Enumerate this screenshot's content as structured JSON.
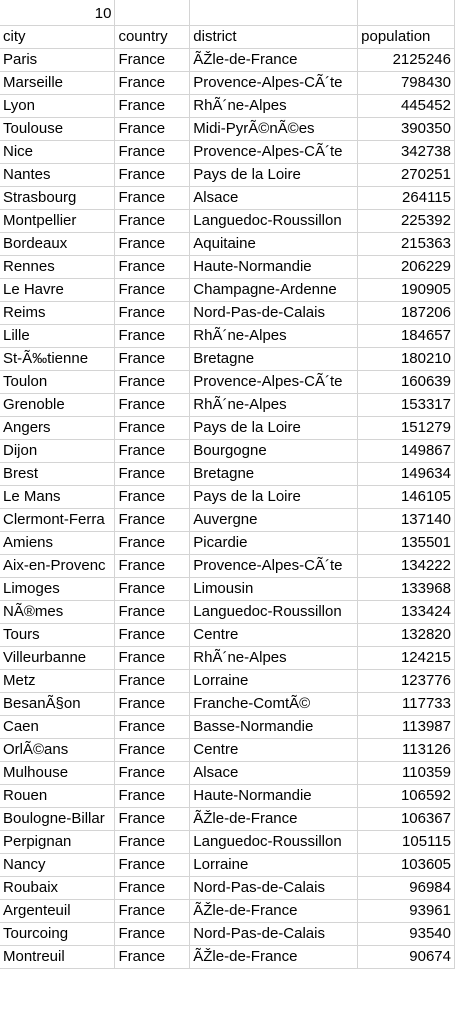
{
  "top_row": {
    "a1": "10",
    "b1": "",
    "c1": "",
    "d1": ""
  },
  "headers": [
    "city",
    "country",
    "district",
    "population"
  ],
  "rows": [
    [
      "Paris",
      "France",
      "ÃŽle-de-France",
      "2125246"
    ],
    [
      "Marseille",
      "France",
      "Provence-Alpes-CÃ´te",
      "798430"
    ],
    [
      "Lyon",
      "France",
      "RhÃ´ne-Alpes",
      "445452"
    ],
    [
      "Toulouse",
      "France",
      "Midi-PyrÃ©nÃ©es",
      "390350"
    ],
    [
      "Nice",
      "France",
      "Provence-Alpes-CÃ´te",
      "342738"
    ],
    [
      "Nantes",
      "France",
      "Pays de la Loire",
      "270251"
    ],
    [
      "Strasbourg",
      "France",
      "Alsace",
      "264115"
    ],
    [
      "Montpellier",
      "France",
      "Languedoc-Roussillon",
      "225392"
    ],
    [
      "Bordeaux",
      "France",
      "Aquitaine",
      "215363"
    ],
    [
      "Rennes",
      "France",
      "Haute-Normandie",
      "206229"
    ],
    [
      "Le Havre",
      "France",
      "Champagne-Ardenne",
      "190905"
    ],
    [
      "Reims",
      "France",
      "Nord-Pas-de-Calais",
      "187206"
    ],
    [
      "Lille",
      "France",
      "RhÃ´ne-Alpes",
      "184657"
    ],
    [
      "St-Ã‰tienne",
      "France",
      "Bretagne",
      "180210"
    ],
    [
      "Toulon",
      "France",
      "Provence-Alpes-CÃ´te",
      "160639"
    ],
    [
      "Grenoble",
      "France",
      "RhÃ´ne-Alpes",
      "153317"
    ],
    [
      "Angers",
      "France",
      "Pays de la Loire",
      "151279"
    ],
    [
      "Dijon",
      "France",
      "Bourgogne",
      "149867"
    ],
    [
      "Brest",
      "France",
      "Bretagne",
      "149634"
    ],
    [
      "Le Mans",
      "France",
      "Pays de la Loire",
      "146105"
    ],
    [
      "Clermont-Ferra",
      "France",
      "Auvergne",
      "137140"
    ],
    [
      "Amiens",
      "France",
      "Picardie",
      "135501"
    ],
    [
      "Aix-en-Provenc",
      "France",
      "Provence-Alpes-CÃ´te",
      "134222"
    ],
    [
      "Limoges",
      "France",
      "Limousin",
      "133968"
    ],
    [
      "NÃ®mes",
      "France",
      "Languedoc-Roussillon",
      "133424"
    ],
    [
      "Tours",
      "France",
      "Centre",
      "132820"
    ],
    [
      "Villeurbanne",
      "France",
      "RhÃ´ne-Alpes",
      "124215"
    ],
    [
      "Metz",
      "France",
      "Lorraine",
      "123776"
    ],
    [
      "BesanÃ§on",
      "France",
      "Franche-ComtÃ©",
      "117733"
    ],
    [
      "Caen",
      "France",
      "Basse-Normandie",
      "113987"
    ],
    [
      "OrlÃ©ans",
      "France",
      "Centre",
      "113126"
    ],
    [
      "Mulhouse",
      "France",
      "Alsace",
      "110359"
    ],
    [
      "Rouen",
      "France",
      "Haute-Normandie",
      "106592"
    ],
    [
      "Boulogne-Billar",
      "France",
      "ÃŽle-de-France",
      "106367"
    ],
    [
      "Perpignan",
      "France",
      "Languedoc-Roussillon",
      "105115"
    ],
    [
      "Nancy",
      "France",
      "Lorraine",
      "103605"
    ],
    [
      "Roubaix",
      "France",
      "Nord-Pas-de-Calais",
      "96984"
    ],
    [
      "Argenteuil",
      "France",
      "ÃŽle-de-France",
      "93961"
    ],
    [
      "Tourcoing",
      "France",
      "Nord-Pas-de-Calais",
      "93540"
    ],
    [
      "Montreuil",
      "France",
      "ÃŽle-de-France",
      "90674"
    ]
  ]
}
